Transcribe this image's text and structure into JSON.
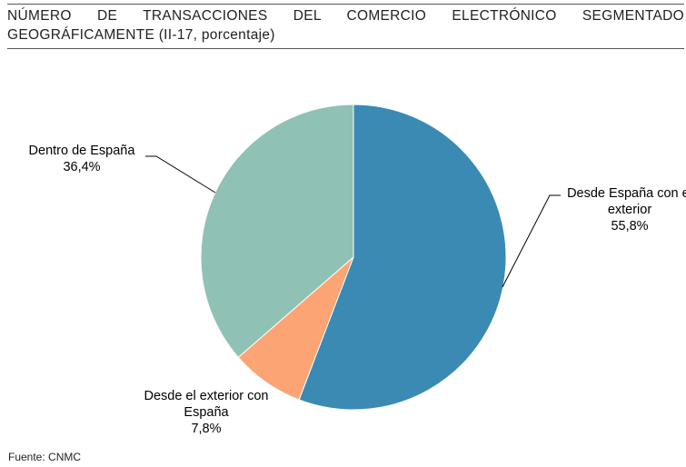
{
  "chart_data": {
    "type": "pie",
    "title": "NÚMERO DE TRANSACCIONES DEL COMERCIO ELECTRÓNICO SEGMENTADO GEOGRÁFICAMENTE (II-17, porcentaje)",
    "categories": [
      "Desde España con el exterior",
      "Desde el exterior con España",
      "Dentro de España"
    ],
    "values": [
      55.8,
      7.8,
      36.4
    ],
    "value_labels": [
      "55,8%",
      "7,8%",
      "36,4%"
    ],
    "colors": [
      "#3a8ab3",
      "#fca474",
      "#8fc1b5"
    ],
    "source": "Fuente: CNMC"
  }
}
